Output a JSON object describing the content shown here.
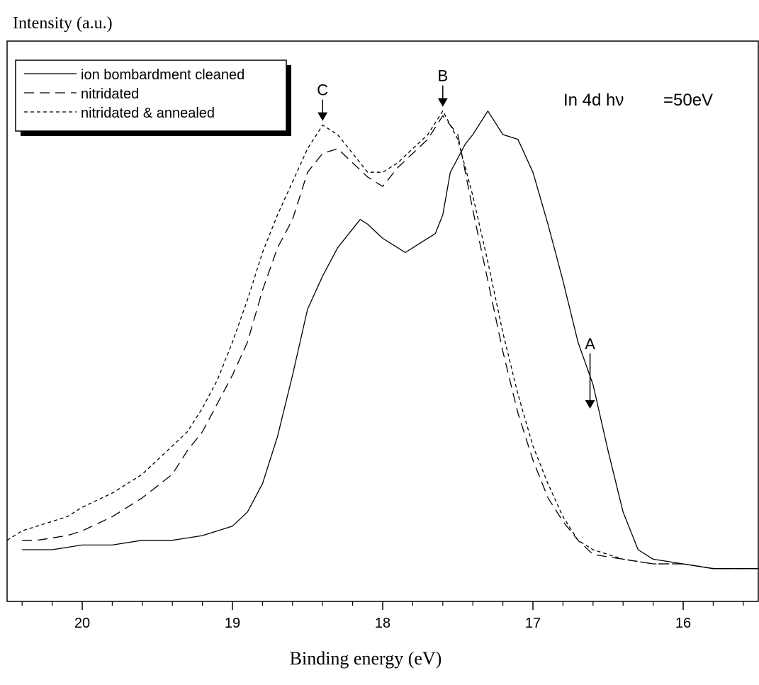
{
  "chart_data": {
    "type": "line",
    "ylabel": "Intensity (a.u.)",
    "xlabel": "Binding energy (eV)",
    "xlim": [
      20.5,
      15.5
    ],
    "x_reversed": true,
    "ylim": [
      0,
      1
    ],
    "y_ticks_shown": false,
    "grid": false,
    "legend_position": "top-left",
    "x_ticks": [
      {
        "value": 20,
        "label": "20"
      },
      {
        "value": 19,
        "label": "19"
      },
      {
        "value": 18,
        "label": "18"
      },
      {
        "value": 17,
        "label": "17"
      },
      {
        "value": 16,
        "label": "16"
      }
    ],
    "annotation_text": {
      "main": "In 4d hν",
      "value": "=50eV"
    },
    "peak_markers": [
      {
        "label": "C",
        "x": 18.4,
        "y": 0.96
      },
      {
        "label": "B",
        "x": 17.6,
        "y": 0.99
      },
      {
        "label": "A",
        "x": 16.62,
        "y": 0.35
      }
    ],
    "series": [
      {
        "name": "ion bombardment cleaned",
        "dash": "solid",
        "points": [
          [
            20.2,
            0.06
          ],
          [
            20.3,
            0.06
          ],
          [
            20.4,
            0.06
          ],
          [
            20.0,
            0.07
          ],
          [
            19.8,
            0.07
          ],
          [
            19.6,
            0.08
          ],
          [
            19.4,
            0.08
          ],
          [
            19.2,
            0.09
          ],
          [
            19.0,
            0.11
          ],
          [
            18.9,
            0.14
          ],
          [
            18.8,
            0.2
          ],
          [
            18.7,
            0.3
          ],
          [
            18.6,
            0.43
          ],
          [
            18.5,
            0.57
          ],
          [
            18.4,
            0.64
          ],
          [
            18.3,
            0.7
          ],
          [
            18.15,
            0.76
          ],
          [
            18.1,
            0.75
          ],
          [
            18.0,
            0.72
          ],
          [
            17.95,
            0.71
          ],
          [
            17.85,
            0.69
          ],
          [
            17.75,
            0.71
          ],
          [
            17.65,
            0.73
          ],
          [
            17.6,
            0.77
          ],
          [
            17.55,
            0.86
          ],
          [
            17.5,
            0.89
          ],
          [
            17.45,
            0.92
          ],
          [
            17.4,
            0.94
          ],
          [
            17.3,
            0.99
          ],
          [
            17.2,
            0.94
          ],
          [
            17.1,
            0.93
          ],
          [
            17.0,
            0.86
          ],
          [
            16.9,
            0.75
          ],
          [
            16.8,
            0.63
          ],
          [
            16.7,
            0.5
          ],
          [
            16.6,
            0.41
          ],
          [
            16.5,
            0.27
          ],
          [
            16.4,
            0.14
          ],
          [
            16.3,
            0.06
          ],
          [
            16.2,
            0.04
          ],
          [
            16.0,
            0.03
          ],
          [
            15.8,
            0.02
          ],
          [
            15.5,
            0.02
          ]
        ]
      },
      {
        "name": "nitridated",
        "dash": "long",
        "points": [
          [
            20.4,
            0.08
          ],
          [
            20.3,
            0.08
          ],
          [
            20.1,
            0.09
          ],
          [
            20.0,
            0.1
          ],
          [
            19.8,
            0.13
          ],
          [
            19.6,
            0.17
          ],
          [
            19.4,
            0.22
          ],
          [
            19.3,
            0.27
          ],
          [
            19.2,
            0.31
          ],
          [
            19.1,
            0.37
          ],
          [
            19.0,
            0.43
          ],
          [
            18.9,
            0.5
          ],
          [
            18.8,
            0.61
          ],
          [
            18.7,
            0.7
          ],
          [
            18.6,
            0.76
          ],
          [
            18.5,
            0.86
          ],
          [
            18.4,
            0.9
          ],
          [
            18.3,
            0.91
          ],
          [
            18.2,
            0.88
          ],
          [
            18.1,
            0.85
          ],
          [
            18.0,
            0.83
          ],
          [
            17.9,
            0.87
          ],
          [
            17.8,
            0.9
          ],
          [
            17.7,
            0.93
          ],
          [
            17.6,
            0.98
          ],
          [
            17.5,
            0.94
          ],
          [
            17.4,
            0.78
          ],
          [
            17.3,
            0.63
          ],
          [
            17.2,
            0.48
          ],
          [
            17.1,
            0.35
          ],
          [
            17.0,
            0.25
          ],
          [
            16.9,
            0.17
          ],
          [
            16.8,
            0.12
          ],
          [
            16.7,
            0.08
          ],
          [
            16.6,
            0.05
          ],
          [
            16.4,
            0.04
          ],
          [
            16.2,
            0.03
          ],
          [
            16.0,
            0.03
          ],
          [
            15.8,
            0.02
          ],
          [
            15.5,
            0.02
          ]
        ]
      },
      {
        "name": "nitridated & annealed",
        "dash": "short",
        "points": [
          [
            20.5,
            0.08
          ],
          [
            20.4,
            0.1
          ],
          [
            20.3,
            0.11
          ],
          [
            20.1,
            0.13
          ],
          [
            20.0,
            0.15
          ],
          [
            19.8,
            0.18
          ],
          [
            19.6,
            0.22
          ],
          [
            19.4,
            0.28
          ],
          [
            19.3,
            0.31
          ],
          [
            19.2,
            0.36
          ],
          [
            19.1,
            0.42
          ],
          [
            19.0,
            0.5
          ],
          [
            18.9,
            0.59
          ],
          [
            18.8,
            0.69
          ],
          [
            18.7,
            0.77
          ],
          [
            18.6,
            0.84
          ],
          [
            18.5,
            0.91
          ],
          [
            18.4,
            0.96
          ],
          [
            18.3,
            0.94
          ],
          [
            18.2,
            0.9
          ],
          [
            18.1,
            0.86
          ],
          [
            18.0,
            0.86
          ],
          [
            17.9,
            0.88
          ],
          [
            17.8,
            0.91
          ],
          [
            17.7,
            0.94
          ],
          [
            17.6,
            0.99
          ],
          [
            17.5,
            0.93
          ],
          [
            17.4,
            0.81
          ],
          [
            17.3,
            0.67
          ],
          [
            17.2,
            0.52
          ],
          [
            17.1,
            0.39
          ],
          [
            17.0,
            0.28
          ],
          [
            16.9,
            0.2
          ],
          [
            16.8,
            0.13
          ],
          [
            16.7,
            0.08
          ],
          [
            16.6,
            0.06
          ],
          [
            16.4,
            0.04
          ],
          [
            16.2,
            0.03
          ],
          [
            16.0,
            0.03
          ],
          [
            15.8,
            0.02
          ],
          [
            15.5,
            0.02
          ]
        ]
      }
    ]
  }
}
